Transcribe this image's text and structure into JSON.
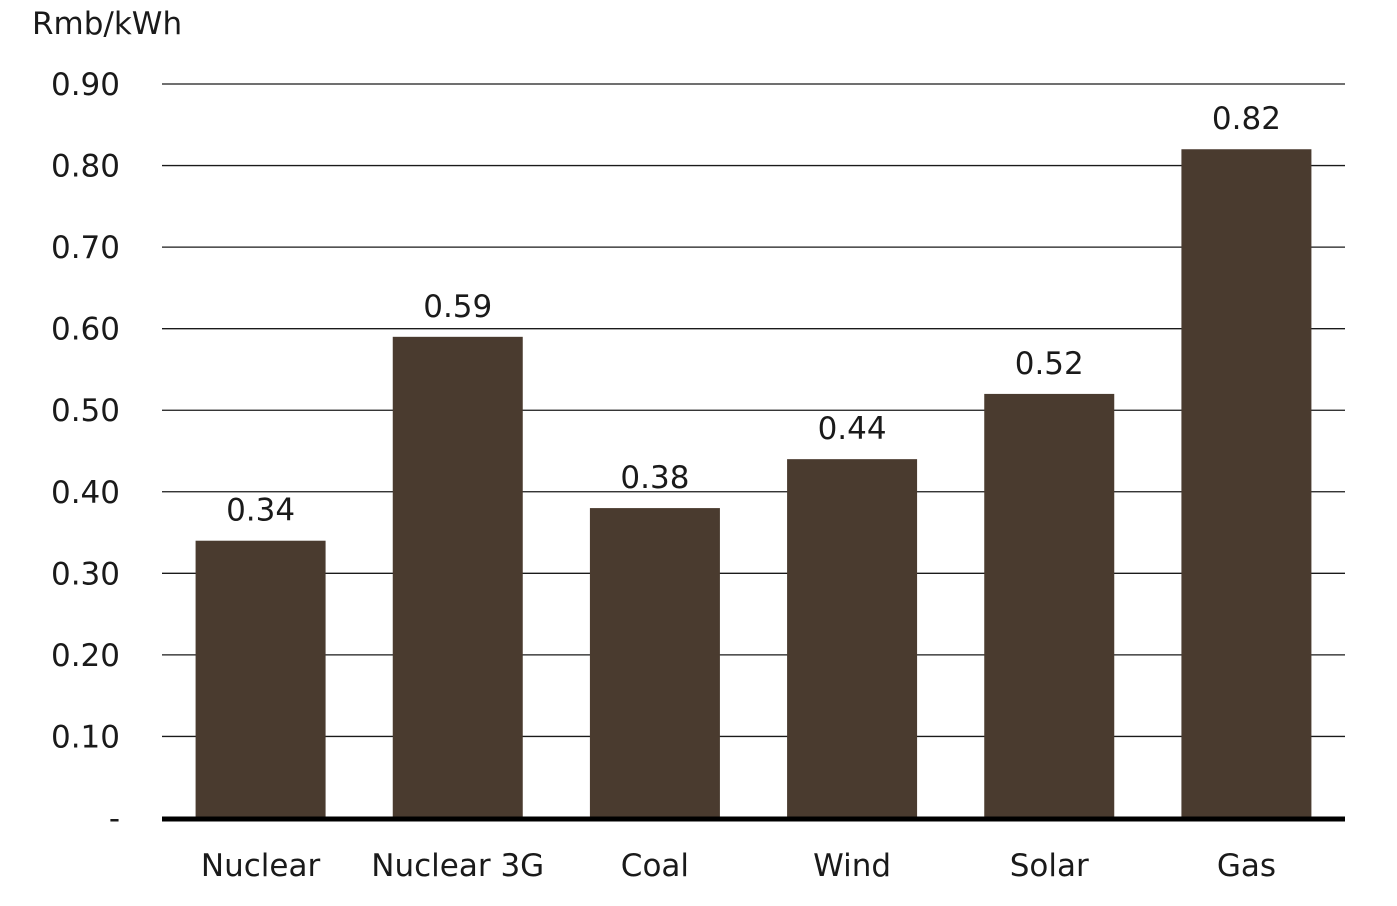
{
  "chart_data": {
    "type": "bar",
    "ylabel": "Rmb/kWh",
    "categories": [
      "Nuclear",
      "Nuclear 3G",
      "Coal",
      "Wind",
      "Solar",
      "Gas"
    ],
    "values": [
      0.34,
      0.59,
      0.38,
      0.44,
      0.52,
      0.82
    ],
    "value_labels": [
      "0.34",
      "0.59",
      "0.38",
      "0.44",
      "0.52",
      "0.82"
    ],
    "ylim": [
      0,
      0.9
    ],
    "yticks": [
      0,
      0.1,
      0.2,
      0.3,
      0.4,
      0.5,
      0.6,
      0.7,
      0.8,
      0.9
    ],
    "ytick_labels": [
      "-",
      "0.10",
      "0.20",
      "0.30",
      "0.40",
      "0.50",
      "0.60",
      "0.70",
      "0.80",
      "0.90"
    ],
    "grid": true,
    "legend": "none",
    "bar_color": "#4a3b2f"
  }
}
